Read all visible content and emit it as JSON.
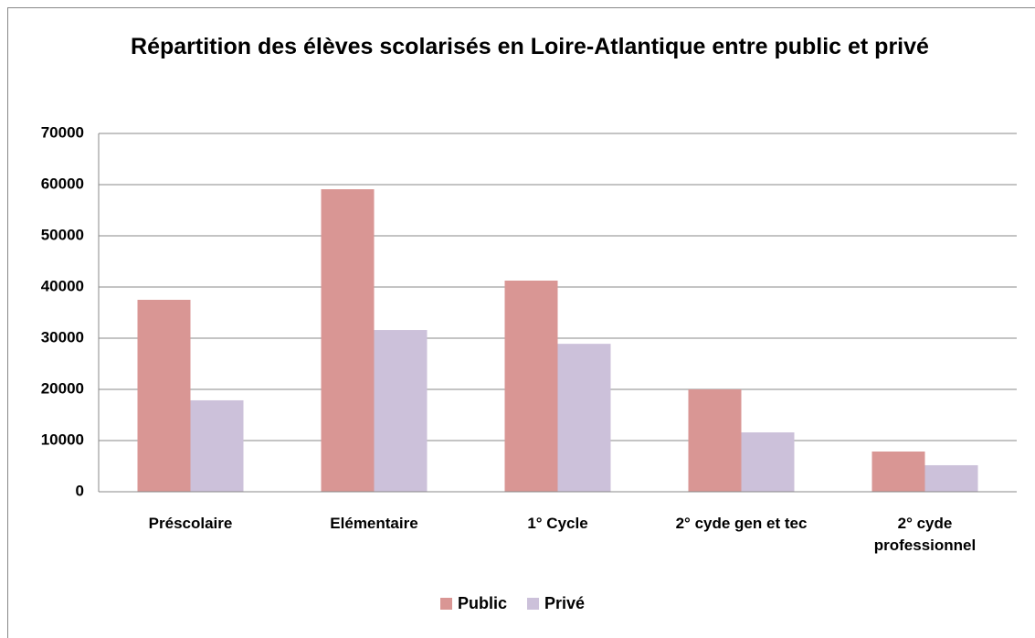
{
  "chart_data": {
    "type": "bar",
    "title": "Répartition des élèves  scolarisés en Loire-Atlantique entre public et privé",
    "categories": [
      "Préscolaire",
      "Elémentaire",
      "1° Cycle",
      "2° cyde gen et tec",
      "2° cyde professionnel"
    ],
    "series": [
      {
        "name": "Public",
        "color": "#d99694",
        "values": [
          37500,
          59100,
          41250,
          20000,
          7860
        ]
      },
      {
        "name": "Privé",
        "color": "#ccc1da",
        "values": [
          17860,
          31600,
          28900,
          11600,
          5180
        ]
      }
    ],
    "ylim": [
      0,
      70000
    ],
    "yticks": [
      0,
      10000,
      20000,
      30000,
      40000,
      50000,
      60000,
      70000
    ],
    "grid": true,
    "legend": "bottom"
  }
}
